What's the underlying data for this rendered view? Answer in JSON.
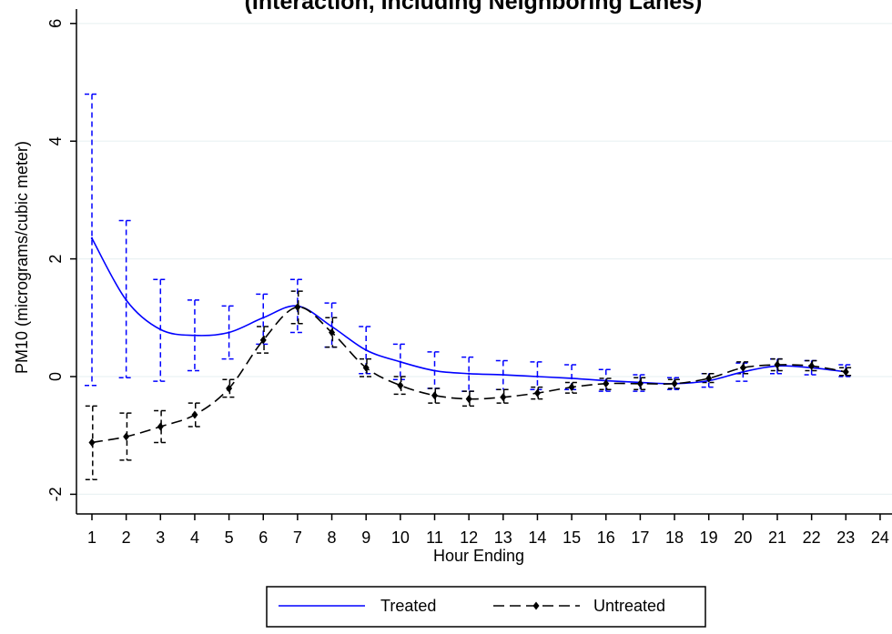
{
  "header": {
    "partial_title": "(Interaction, Including Neighboring Lanes)"
  },
  "chart_data": {
    "type": "line",
    "title": "(Interaction, Including Neighboring Lanes)",
    "xlabel": "Hour Ending",
    "ylabel": "PM10 (micrograms/cubic meter)",
    "xlim": [
      1,
      24
    ],
    "ylim": [
      -2,
      6
    ],
    "x_ticks": [
      1,
      2,
      3,
      4,
      5,
      6,
      7,
      8,
      9,
      10,
      11,
      12,
      13,
      14,
      15,
      16,
      17,
      18,
      19,
      20,
      21,
      22,
      23,
      24
    ],
    "y_ticks": [
      -2,
      0,
      2,
      4,
      6
    ],
    "grid": true,
    "legend_position": "bottom",
    "x": [
      1,
      2,
      3,
      4,
      5,
      6,
      7,
      8,
      9,
      10,
      11,
      12,
      13,
      14,
      15,
      16,
      17,
      18,
      19,
      20,
      21,
      22,
      23
    ],
    "series": [
      {
        "name": "Treated",
        "color": "#0000ff",
        "line_style": "solid",
        "values": [
          2.35,
          1.3,
          0.8,
          0.7,
          0.75,
          1.0,
          1.2,
          0.85,
          0.45,
          0.25,
          0.1,
          0.05,
          0.03,
          0.0,
          -0.03,
          -0.07,
          -0.1,
          -0.12,
          -0.07,
          0.08,
          0.18,
          0.15,
          0.08
        ],
        "lower": [
          -0.15,
          -0.02,
          -0.08,
          0.1,
          0.3,
          0.55,
          0.75,
          0.5,
          0.05,
          -0.05,
          -0.2,
          -0.25,
          -0.22,
          -0.22,
          -0.22,
          -0.25,
          -0.25,
          -0.22,
          -0.18,
          -0.08,
          0.05,
          0.03,
          0.0
        ],
        "upper": [
          4.8,
          2.65,
          1.65,
          1.3,
          1.2,
          1.4,
          1.65,
          1.25,
          0.85,
          0.55,
          0.42,
          0.33,
          0.27,
          0.25,
          0.2,
          0.12,
          0.03,
          -0.02,
          0.05,
          0.23,
          0.3,
          0.27,
          0.2
        ]
      },
      {
        "name": "Untreated",
        "color": "#000000",
        "line_style": "dashed",
        "values": [
          -1.12,
          -1.02,
          -0.85,
          -0.65,
          -0.2,
          0.62,
          1.18,
          0.75,
          0.15,
          -0.15,
          -0.32,
          -0.38,
          -0.35,
          -0.28,
          -0.18,
          -0.12,
          -0.12,
          -0.12,
          -0.03,
          0.15,
          0.2,
          0.18,
          0.08
        ],
        "lower": [
          -1.75,
          -1.42,
          -1.12,
          -0.85,
          -0.35,
          0.4,
          0.9,
          0.5,
          0.0,
          -0.3,
          -0.45,
          -0.5,
          -0.45,
          -0.38,
          -0.28,
          -0.22,
          -0.22,
          -0.2,
          -0.1,
          0.05,
          0.1,
          0.1,
          0.02
        ],
        "upper": [
          -0.5,
          -0.62,
          -0.58,
          -0.45,
          -0.05,
          0.85,
          1.45,
          1.0,
          0.3,
          0.0,
          -0.2,
          -0.25,
          -0.22,
          -0.18,
          -0.1,
          -0.03,
          -0.02,
          -0.05,
          0.05,
          0.25,
          0.3,
          0.27,
          0.15
        ]
      }
    ]
  }
}
